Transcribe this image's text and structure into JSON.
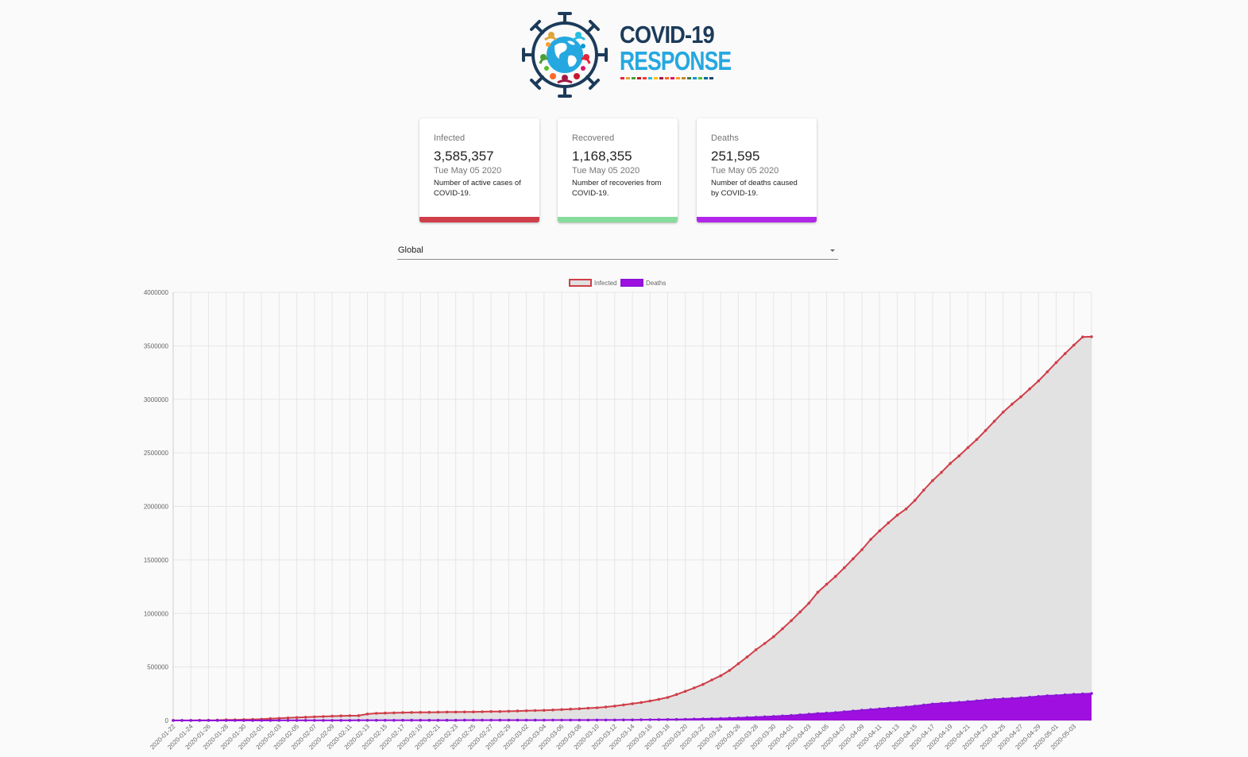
{
  "logo": {
    "line1": "COVID-19",
    "line2": "RESPONSE",
    "stripe_colors": [
      "#e5243b",
      "#dda63a",
      "#4c9f38",
      "#c5192d",
      "#ff3a21",
      "#26bde2",
      "#fcc30b",
      "#a21942",
      "#fd6925",
      "#dd1367",
      "#fd9d24",
      "#bf8b2e",
      "#3f7e44",
      "#0a97d9",
      "#56c02b",
      "#00689d",
      "#19486a"
    ]
  },
  "cards": [
    {
      "title": "Infected",
      "value": "3,585,357",
      "date": "Tue May 05 2020",
      "desc": "Number of active cases of COVID-19.",
      "color": "#cf3f4a"
    },
    {
      "title": "Recovered",
      "value": "1,168,355",
      "date": "Tue May 05 2020",
      "desc": "Number of recoveries from COVID-19.",
      "color": "#87dc9c"
    },
    {
      "title": "Deaths",
      "value": "251,595",
      "date": "Tue May 05 2020",
      "desc": "Number of deaths caused by COVID-19.",
      "color": "#b126ea"
    }
  ],
  "region_select": {
    "value": "Global"
  },
  "chart_data": {
    "type": "area",
    "ylim": [
      0,
      4000000
    ],
    "yticks": [
      0,
      500000,
      1000000,
      1500000,
      2000000,
      2500000,
      3000000,
      3500000,
      4000000
    ],
    "grid": true,
    "legend_position": "top",
    "x_start": "2020-01-22",
    "x_end": "2020-05-05",
    "x_tick_labels": [
      "2020-01-22",
      "2020-01-24",
      "2020-01-26",
      "2020-01-28",
      "2020-01-30",
      "2020-02-01",
      "2020-02-03",
      "2020-02-05",
      "2020-02-07",
      "2020-02-09",
      "2020-02-11",
      "2020-02-13",
      "2020-02-15",
      "2020-02-17",
      "2020-02-19",
      "2020-02-21",
      "2020-02-23",
      "2020-02-25",
      "2020-02-27",
      "2020-02-29",
      "2020-03-02",
      "2020-03-04",
      "2020-03-06",
      "2020-03-08",
      "2020-03-10",
      "2020-03-12",
      "2020-03-14",
      "2020-03-16",
      "2020-03-18",
      "2020-03-20",
      "2020-03-22",
      "2020-03-24",
      "2020-03-26",
      "2020-03-28",
      "2020-03-30",
      "2020-04-01",
      "2020-04-03",
      "2020-04-05",
      "2020-04-07",
      "2020-04-09",
      "2020-04-11",
      "2020-04-13",
      "2020-04-15",
      "2020-04-17",
      "2020-04-19",
      "2020-04-21",
      "2020-04-23",
      "2020-04-25",
      "2020-04-27",
      "2020-04-29",
      "2020-05-01",
      "2020-05-03"
    ],
    "series": [
      {
        "name": "Infected",
        "line_color": "#cf3f4a",
        "fill_color": "#e0e0e0",
        "values": [
          555,
          654,
          941,
          1434,
          2118,
          2927,
          5578,
          6166,
          8234,
          9927,
          12038,
          16787,
          19881,
          23892,
          27635,
          30794,
          34391,
          37120,
          40150,
          42762,
          44802,
          45221,
          60368,
          66885,
          69030,
          71224,
          73258,
          75136,
          75639,
          76197,
          76819,
          78572,
          78958,
          79561,
          80406,
          81388,
          82746,
          84112,
          86011,
          88369,
          90306,
          92840,
          95120,
          97886,
          101801,
          105847,
          109821,
          115381,
          118948,
          126214,
          134576,
          145483,
          156653,
          167449,
          181546,
          197168,
          214915,
          242713,
          272167,
          304528,
          336953,
          378235,
          418045,
          467653,
          529591,
          593291,
          660706,
          720117,
          782389,
          857487,
          932605,
          1013466,
          1095917,
          1197405,
          1272115,
          1345101,
          1426096,
          1511104,
          1595350,
          1691719,
          1771514,
          1846679,
          1917320,
          1976192,
          2056054,
          2152437,
          2240190,
          2317759,
          2401379,
          2472259,
          2549123,
          2624610,
          2708885,
          2795735,
          2881140,
          2955033,
          3023722,
          3097229,
          3172287,
          3256846,
          3343777,
          3427343,
          3506729,
          3583055,
          3585357
        ]
      },
      {
        "name": "Deaths",
        "line_color": "#8e14d8",
        "fill_color": "#9f10e0",
        "values": [
          17,
          18,
          26,
          42,
          56,
          82,
          131,
          133,
          171,
          213,
          259,
          362,
          426,
          492,
          564,
          634,
          719,
          806,
          906,
          1013,
          1113,
          1118,
          1371,
          1523,
          1666,
          1770,
          1868,
          2007,
          2122,
          2247,
          2251,
          2458,
          2469,
          2629,
          2708,
          2770,
          2814,
          2872,
          2941,
          2996,
          3085,
          3160,
          3254,
          3348,
          3460,
          3558,
          3802,
          3988,
          4262,
          4615,
          4720,
          5404,
          5819,
          6440,
          7126,
          7905,
          8733,
          9867,
          11299,
          12973,
          14651,
          16505,
          18625,
          21181,
          23970,
          27198,
          30652,
          33925,
          37582,
          42107,
          46809,
          52983,
          58787,
          64606,
          69374,
          74565,
          81865,
          88338,
          95455,
          102525,
          108503,
          114091,
          119482,
          125984,
          134177,
          143800,
          153821,
          159509,
          165044,
          169986,
          176583,
          183027,
          190858,
          197245,
          202846,
          206544,
          211167,
          217153,
          224172,
          230705,
          234116,
          239604,
          243847,
          247503,
          251595
        ]
      }
    ]
  }
}
